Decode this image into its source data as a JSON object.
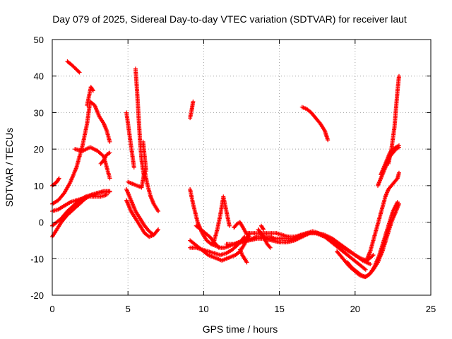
{
  "chart_data": {
    "type": "scatter",
    "title": "Day 079 of 2025, Sidereal Day-to-day VTEC variation (SDTVAR) for receiver laut",
    "xlabel": "GPS time / hours",
    "ylabel": "SDTVAR / TECUs",
    "xlim": [
      0,
      25
    ],
    "ylim": [
      -20,
      50
    ],
    "xticks": [
      0,
      5,
      10,
      15,
      20,
      25
    ],
    "yticks": [
      -20,
      -10,
      0,
      10,
      20,
      30,
      40,
      50
    ],
    "grid": true,
    "marker": "+",
    "color": "#ff0000",
    "series": [
      {
        "name": "arc01",
        "x": [
          1.0,
          1.3,
          1.6,
          1.8
        ],
        "y": [
          44,
          43,
          41.8,
          41
        ]
      },
      {
        "name": "arc02",
        "x": [
          0.0,
          0.15,
          0.3,
          0.45
        ],
        "y": [
          10,
          10.5,
          11,
          12
        ]
      },
      {
        "name": "arc03",
        "x": [
          0.0,
          0.4,
          0.8,
          1.2,
          1.6,
          2.0,
          2.3,
          2.5,
          2.8,
          3.1,
          3.4,
          3.6,
          3.8
        ],
        "y": [
          5,
          6,
          8,
          11,
          15,
          21,
          27,
          33,
          32,
          29,
          27,
          25,
          22
        ]
      },
      {
        "name": "arc04",
        "x": [
          2.3,
          2.45,
          2.55,
          2.7
        ],
        "y": [
          32,
          35,
          37,
          36
        ]
      },
      {
        "name": "arc05",
        "x": [
          0.0,
          0.3,
          0.6,
          1.0,
          1.4,
          1.8,
          2.2,
          2.6,
          3.0,
          3.4,
          3.8
        ],
        "y": [
          -4,
          -2,
          0,
          2,
          3.5,
          5,
          6.5,
          7.5,
          8,
          8.5,
          8.5
        ]
      },
      {
        "name": "arc06",
        "x": [
          0.0,
          0.4,
          0.8,
          1.2,
          1.6,
          2.0,
          2.4,
          2.8,
          3.2,
          3.6
        ],
        "y": [
          3,
          3.5,
          4.5,
          5.5,
          6,
          6.5,
          7,
          7,
          7,
          7.5
        ]
      },
      {
        "name": "arc07",
        "x": [
          0.0,
          0.3,
          0.6,
          1.0,
          1.4,
          1.8,
          2.2,
          2.6,
          3.0,
          3.4,
          3.8
        ],
        "y": [
          -1,
          0,
          1,
          3,
          4.5,
          6,
          7,
          7.5,
          8,
          8.3,
          8.3
        ]
      },
      {
        "name": "arc08",
        "x": [
          1.5,
          2.0,
          2.5,
          3.0,
          3.4,
          3.6,
          3.8
        ],
        "y": [
          20,
          19.5,
          20.5,
          19.5,
          18,
          15,
          12
        ]
      },
      {
        "name": "arc09",
        "x": [
          3.2,
          3.4,
          3.6,
          3.8
        ],
        "y": [
          16,
          17,
          18.5,
          19
        ]
      },
      {
        "name": "arc10",
        "x": [
          4.9,
          5.0,
          5.1,
          5.2,
          5.3,
          5.4
        ],
        "y": [
          30,
          27,
          24,
          21,
          18,
          15
        ]
      },
      {
        "name": "arc11",
        "x": [
          5.0,
          5.3,
          5.6,
          5.9,
          6.1,
          6.3,
          6.5,
          6.7,
          7.0
        ],
        "y": [
          11,
          10.5,
          10,
          9.5,
          14,
          10,
          7,
          5,
          3
        ]
      },
      {
        "name": "arc12",
        "x": [
          5.5,
          5.6,
          5.7,
          5.8,
          5.9,
          6.0,
          6.1
        ],
        "y": [
          42,
          36,
          29,
          22,
          17,
          14,
          12
        ]
      },
      {
        "name": "arc13",
        "x": [
          6.0,
          6.1,
          6.2
        ],
        "y": [
          22,
          18,
          14
        ]
      },
      {
        "name": "arc14",
        "x": [
          4.9,
          5.2,
          5.5,
          5.8,
          6.1,
          6.4,
          6.7
        ],
        "y": [
          9,
          6,
          3,
          1,
          -1,
          -2.5,
          -3.5
        ]
      },
      {
        "name": "arc15",
        "x": [
          4.9,
          5.2,
          5.5,
          5.8,
          6.1,
          6.4,
          6.7,
          7.0
        ],
        "y": [
          6,
          3,
          1,
          -1,
          -3,
          -4,
          -3.5,
          -2
        ]
      },
      {
        "name": "arc16",
        "x": [
          9.1,
          9.2,
          9.3
        ],
        "y": [
          28.5,
          30.5,
          33
        ]
      },
      {
        "name": "arc17",
        "x": [
          9.1,
          9.3,
          9.6,
          9.9,
          10.2,
          10.5,
          10.8,
          11.1,
          11.4,
          11.7,
          12.0,
          12.3,
          12.6,
          12.9,
          13.2,
          13.5,
          13.8,
          14.1,
          14.4,
          14.7,
          15.0,
          15.3,
          15.6,
          15.9,
          16.2,
          16.5,
          16.8,
          17.1,
          17.4,
          17.7,
          18.0,
          18.3,
          18.6,
          18.9,
          19.2,
          19.5,
          19.8,
          20.1,
          20.4,
          20.7
        ],
        "y": [
          9,
          5,
          0,
          -3,
          -5,
          -6,
          -6.5,
          -7,
          -7,
          -6.5,
          -6,
          -5.5,
          -5,
          -4.5,
          -4.5,
          -4,
          -4,
          -4,
          -4,
          -4.5,
          -4.5,
          -4.5,
          -4.5,
          -4.5,
          -4,
          -3.5,
          -3,
          -3,
          -3,
          -3.5,
          -4,
          -5,
          -6,
          -7,
          -8,
          -9,
          -10,
          -11,
          -12,
          -13
        ]
      },
      {
        "name": "arc18",
        "x": [
          9.1,
          9.4,
          9.7,
          10.0,
          10.3,
          10.6,
          10.9,
          11.2,
          11.5,
          11.8,
          12.1,
          12.4,
          12.7,
          13.0
        ],
        "y": [
          -5,
          -6,
          -7,
          -8,
          -9,
          -9.5,
          -10,
          -10.5,
          -10,
          -9.5,
          -9,
          -8,
          -6,
          -3
        ]
      },
      {
        "name": "arc19",
        "x": [
          9.1,
          9.5,
          9.9,
          10.3,
          10.7,
          11.1,
          11.5,
          11.9,
          12.3,
          12.7
        ],
        "y": [
          -7,
          -7,
          -7.5,
          -8,
          -8.5,
          -9,
          -8.5,
          -7.5,
          -6,
          -4
        ]
      },
      {
        "name": "arc20",
        "x": [
          10.5,
          10.7,
          10.9,
          11.1,
          11.3,
          11.5,
          11.7
        ],
        "y": [
          -6,
          -5,
          -2,
          2,
          7,
          3,
          -1
        ]
      },
      {
        "name": "arc21",
        "x": [
          9.5,
          9.8,
          10.1,
          10.4,
          10.7,
          11.0
        ],
        "y": [
          -1,
          -2,
          -3,
          -4,
          -5.5,
          -7
        ]
      },
      {
        "name": "arc22",
        "x": [
          12.4,
          12.55,
          12.7,
          12.85
        ],
        "y": [
          -7.5,
          -9,
          -10,
          -11
        ]
      },
      {
        "name": "arc23",
        "x": [
          12.0,
          12.2,
          12.4,
          12.6,
          12.8,
          13.0
        ],
        "y": [
          -1.5,
          -0.5,
          0,
          -1.5,
          -3,
          -4
        ]
      },
      {
        "name": "arc24",
        "x": [
          12.8,
          13.2,
          13.6,
          14.0,
          14.4,
          14.8,
          15.2,
          15.6,
          16.0,
          16.4,
          16.8,
          17.2,
          17.6,
          18.0,
          18.4,
          18.8,
          19.2,
          19.6,
          20.0,
          20.4,
          20.8,
          21.2
        ],
        "y": [
          -3,
          -3,
          -3,
          -3,
          -3,
          -3,
          -3.5,
          -4,
          -4,
          -3.5,
          -3,
          -2.5,
          -3,
          -4,
          -5,
          -6,
          -7,
          -8,
          -9,
          -10,
          -10.5,
          -9
        ]
      },
      {
        "name": "arc25",
        "x": [
          11.5,
          12.0,
          12.5,
          13.0,
          13.5,
          14.0,
          14.5,
          15.0,
          15.5,
          16.0,
          16.5,
          17.0,
          17.5,
          18.0,
          18.5,
          19.0,
          19.5,
          20.0,
          20.5,
          21.0
        ],
        "y": [
          -6,
          -6,
          -5.5,
          -5,
          -4.5,
          -4.5,
          -5,
          -5.5,
          -5.5,
          -5,
          -4,
          -3,
          -3,
          -3.5,
          -4.5,
          -6,
          -7.5,
          -9,
          -10.5,
          -11.5
        ]
      },
      {
        "name": "arc26",
        "x": [
          13.6,
          13.8,
          14.0,
          14.2,
          14.4
        ],
        "y": [
          -2,
          -3,
          -4.5,
          -6,
          -7
        ]
      },
      {
        "name": "arc27",
        "x": [
          13.8,
          13.95
        ],
        "y": [
          -1,
          -2
        ]
      },
      {
        "name": "arc28",
        "x": [
          16.5,
          16.8,
          17.1,
          17.4,
          17.7,
          18.0,
          18.2
        ],
        "y": [
          31.5,
          31,
          30,
          28.5,
          27,
          25,
          22.5
        ]
      },
      {
        "name": "arc29",
        "x": [
          18.8,
          19.2,
          19.6,
          20.0,
          20.3,
          20.6,
          20.9,
          21.2,
          21.5,
          21.8,
          22.1,
          22.4,
          22.7,
          22.9
        ],
        "y": [
          -8,
          -10,
          -12,
          -13.5,
          -14.5,
          -15,
          -14.5,
          -13,
          -11,
          -8,
          -4,
          0,
          3,
          5
        ]
      },
      {
        "name": "arc30",
        "x": [
          19.5,
          19.8,
          20.1,
          20.4,
          20.7,
          21.0,
          21.3,
          21.6,
          21.9,
          22.2,
          22.5,
          22.8
        ],
        "y": [
          -11,
          -12.5,
          -13.5,
          -14.5,
          -15,
          -14,
          -12,
          -9,
          -5,
          -1,
          3,
          5.5
        ]
      },
      {
        "name": "arc31",
        "x": [
          20.8,
          21.0,
          21.2,
          21.4,
          21.6,
          21.8,
          22.0,
          22.2,
          22.4,
          22.6,
          22.8,
          22.9
        ],
        "y": [
          -10,
          -8,
          -5,
          -2,
          1,
          4,
          7,
          9,
          10,
          11,
          12,
          13.5
        ]
      },
      {
        "name": "arc32",
        "x": [
          21.5,
          21.7,
          21.9,
          22.1,
          22.3,
          22.5,
          22.7,
          22.9
        ],
        "y": [
          10,
          12,
          14,
          16,
          18,
          19,
          20,
          20.5
        ]
      },
      {
        "name": "arc33",
        "x": [
          21.7,
          21.9,
          22.1,
          22.3,
          22.5,
          22.7,
          22.9
        ],
        "y": [
          13,
          15,
          17,
          19,
          20,
          20.5,
          21
        ]
      },
      {
        "name": "arc34",
        "x": [
          22.2,
          22.4,
          22.6,
          22.7,
          22.8,
          22.9
        ],
        "y": [
          16,
          20,
          26,
          31,
          36,
          40
        ]
      }
    ]
  }
}
